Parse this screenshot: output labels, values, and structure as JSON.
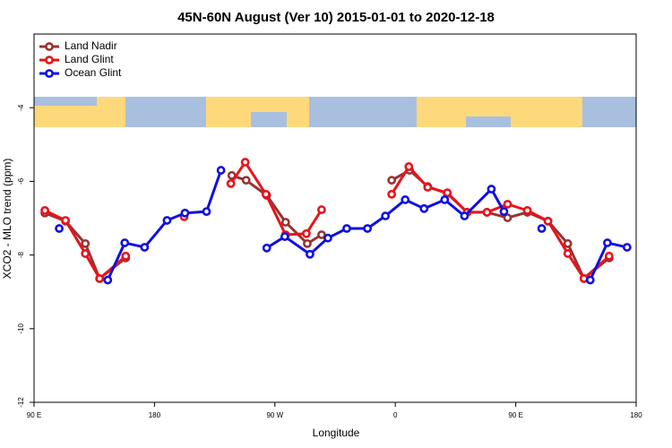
{
  "chart_data": {
    "type": "line",
    "title": "45N-60N August (Ver 10)   2015-01-01 to 2020-12-18",
    "x_label": "Longitude",
    "y_label": "XCO2 - MLO trend (ppm)",
    "xlim": [
      90,
      540
    ],
    "xticks": [
      {
        "value": 90,
        "label": "90 E"
      },
      180,
      {
        "value": 270,
        "label": "90 W"
      },
      {
        "value": 360,
        "label": "0"
      },
      {
        "value": 450,
        "label": "90 E"
      },
      {
        "value": 540,
        "label": "180"
      }
    ],
    "ylim": [
      -12,
      -2
    ],
    "yticks": [
      -12,
      -10,
      -8,
      -6,
      -4
    ],
    "legend": "top-left",
    "series": [
      {
        "name": "Land Nadir",
        "color": "#993333",
        "x": [
          98.1,
          113.5,
          128.3,
          139.0,
          158.5,
          null,
          237.8,
          248.5,
          263.9,
          278.0,
          294.2,
          304.9,
          null,
          357.3,
          370.7,
          384.2,
          398.9,
          413.7,
          428.5,
          443.9,
          458.7,
          474.1,
          488.9,
          501.0,
          519.8
        ],
        "values": [
          -6.86,
          -7.08,
          -7.69,
          -8.64,
          -8.08,
          null,
          -5.84,
          -5.97,
          -6.38,
          -7.11,
          -7.69,
          -7.45,
          null,
          -5.97,
          -5.7,
          -6.14,
          -6.33,
          -6.84,
          -6.84,
          -6.99,
          -6.84,
          -7.08,
          -7.69,
          -8.64,
          -8.08
        ]
      },
      {
        "name": "Land Glint",
        "color": "#e8141a",
        "x": [
          98.1,
          113.5,
          128.3,
          139.0,
          158.5,
          null,
          202.2,
          null,
          237.1,
          247.8,
          263.3,
          278.0,
          293.5,
          304.9,
          null,
          357.3,
          370.1,
          384.2,
          398.9,
          413.7,
          428.5,
          443.9,
          458.7,
          474.1,
          488.9,
          501.0,
          519.8
        ],
        "values": [
          -6.79,
          -7.06,
          -7.96,
          -8.64,
          -8.03,
          null,
          -6.96,
          null,
          -6.06,
          -5.48,
          -6.35,
          -7.45,
          -7.42,
          -6.77,
          null,
          -6.35,
          -5.6,
          -6.16,
          -6.31,
          -6.84,
          -6.84,
          -6.62,
          -6.79,
          -7.08,
          -7.96,
          -8.64,
          -8.03
        ]
      },
      {
        "name": "Ocean Glint",
        "color": "#1010e0",
        "x": [
          108.8,
          null,
          145.1,
          157.8,
          172.6,
          189.4,
          202.8,
          218.9,
          229.7,
          null,
          263.9,
          277.4,
          296.2,
          309.6,
          323.7,
          339.2,
          352.6,
          367.4,
          381.5,
          396.9,
          411.7,
          431.8,
          441.2,
          null,
          469.4,
          null,
          505.7,
          518.5,
          533.2
        ],
        "values": [
          -7.28,
          null,
          -8.68,
          -7.67,
          -7.79,
          -7.06,
          -6.86,
          -6.82,
          -5.7,
          null,
          -7.81,
          -7.5,
          -7.98,
          -7.54,
          -7.28,
          -7.28,
          -6.94,
          -6.5,
          -6.74,
          -6.5,
          -6.94,
          -6.21,
          -6.82,
          null,
          -7.28,
          null,
          -8.68,
          -7.67,
          -7.79
        ]
      }
    ]
  }
}
